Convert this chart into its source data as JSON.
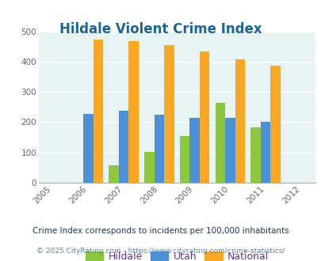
{
  "title": "Hildale Violent Crime Index",
  "all_years": [
    2005,
    2006,
    2007,
    2008,
    2009,
    2010,
    2011,
    2012
  ],
  "data_years": [
    2006,
    2007,
    2008,
    2009,
    2010,
    2011
  ],
  "hildale": [
    0,
    57,
    102,
    153,
    265,
    183
  ],
  "utah": [
    228,
    237,
    224,
    215,
    215,
    200
  ],
  "national": [
    474,
    468,
    455,
    433,
    407,
    387
  ],
  "hildale_color": "#8dc63f",
  "utah_color": "#4d90d5",
  "national_color": "#f9a825",
  "bg_color": "#e8f4f4",
  "ylim": [
    0,
    500
  ],
  "yticks": [
    0,
    100,
    200,
    300,
    400,
    500
  ],
  "subtitle": "Crime Index corresponds to incidents per 100,000 inhabitants",
  "footer": "© 2025 CityRating.com - https://www.cityrating.com/crime-statistics/",
  "title_color": "#1a6496",
  "subtitle_color": "#1a3a5c",
  "footer_color": "#5588aa",
  "legend_label_color": "#663399",
  "bar_width": 0.28
}
